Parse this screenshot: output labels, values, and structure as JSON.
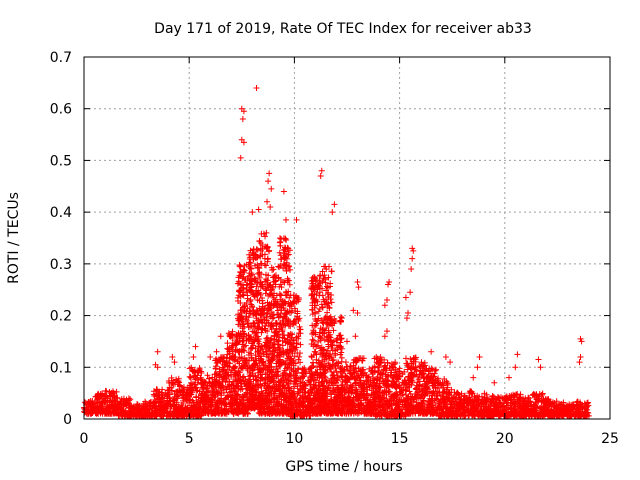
{
  "chart_data": {
    "type": "scatter",
    "title": "Day 171 of 2019, Rate Of TEC Index for receiver ab33",
    "xlabel": "GPS time / hours",
    "ylabel": "ROTI / TECUs",
    "xlim": [
      0,
      25
    ],
    "ylim": [
      0,
      0.7
    ],
    "xticks": [
      "0",
      "5",
      "10",
      "15",
      "20",
      "25"
    ],
    "yticks": [
      "0",
      "0.1",
      "0.2",
      "0.3",
      "0.4",
      "0.5",
      "0.6",
      "0.7"
    ],
    "grid": true,
    "marker": "+",
    "series": [
      {
        "color": "#ff0000",
        "points": [
          [
            8.2,
            0.64
          ],
          [
            7.5,
            0.6
          ],
          [
            7.6,
            0.595
          ],
          [
            7.55,
            0.58
          ],
          [
            7.5,
            0.54
          ],
          [
            7.6,
            0.535
          ],
          [
            7.45,
            0.505
          ],
          [
            8.8,
            0.475
          ],
          [
            8.75,
            0.46
          ],
          [
            8.9,
            0.445
          ],
          [
            9.5,
            0.44
          ],
          [
            8.7,
            0.42
          ],
          [
            8.85,
            0.41
          ],
          [
            11.3,
            0.48
          ],
          [
            11.25,
            0.47
          ],
          [
            11.9,
            0.415
          ],
          [
            11.8,
            0.4
          ],
          [
            8.0,
            0.4
          ],
          [
            8.3,
            0.405
          ],
          [
            9.6,
            0.385
          ],
          [
            10.1,
            0.385
          ],
          [
            15.6,
            0.33
          ],
          [
            15.65,
            0.325
          ],
          [
            15.6,
            0.31
          ],
          [
            15.55,
            0.29
          ],
          [
            13.0,
            0.265
          ],
          [
            13.05,
            0.255
          ],
          [
            14.5,
            0.265
          ],
          [
            14.45,
            0.26
          ],
          [
            14.4,
            0.23
          ],
          [
            14.3,
            0.22
          ],
          [
            15.5,
            0.245
          ],
          [
            15.3,
            0.235
          ],
          [
            15.4,
            0.205
          ],
          [
            15.35,
            0.195
          ],
          [
            12.8,
            0.21
          ],
          [
            13.0,
            0.205
          ],
          [
            14.3,
            0.16
          ],
          [
            14.4,
            0.17
          ],
          [
            12.9,
            0.16
          ],
          [
            3.5,
            0.13
          ],
          [
            3.4,
            0.105
          ],
          [
            3.5,
            0.1
          ],
          [
            4.2,
            0.12
          ],
          [
            4.3,
            0.11
          ],
          [
            5.3,
            0.14
          ],
          [
            5.2,
            0.12
          ],
          [
            6.0,
            0.12
          ],
          [
            6.3,
            0.13
          ],
          [
            6.5,
            0.16
          ],
          [
            18.8,
            0.12
          ],
          [
            18.7,
            0.1
          ],
          [
            18.5,
            0.08
          ],
          [
            20.6,
            0.125
          ],
          [
            20.5,
            0.1
          ],
          [
            21.6,
            0.115
          ],
          [
            21.7,
            0.1
          ],
          [
            19.5,
            0.07
          ],
          [
            20.2,
            0.08
          ],
          [
            23.6,
            0.155
          ],
          [
            23.65,
            0.15
          ],
          [
            23.6,
            0.12
          ],
          [
            23.55,
            0.11
          ],
          [
            16.5,
            0.13
          ],
          [
            17.2,
            0.12
          ],
          [
            17.4,
            0.11
          ],
          [
            12.2,
            0.14
          ],
          [
            12.5,
            0.15
          ]
        ],
        "bands": [
          [
            0.0,
            0.5,
            0.01,
            0.035
          ],
          [
            0.5,
            1.0,
            0.01,
            0.05
          ],
          [
            1.0,
            1.6,
            0.01,
            0.055
          ],
          [
            1.6,
            2.2,
            0.005,
            0.04
          ],
          [
            2.2,
            2.8,
            0.005,
            0.03
          ],
          [
            2.8,
            3.3,
            0.005,
            0.035
          ],
          [
            3.3,
            4.0,
            0.005,
            0.06
          ],
          [
            4.0,
            4.6,
            0.005,
            0.08
          ],
          [
            4.6,
            5.0,
            0.005,
            0.07
          ],
          [
            5.0,
            5.6,
            0.005,
            0.1
          ],
          [
            5.6,
            6.2,
            0.01,
            0.085
          ],
          [
            6.2,
            6.8,
            0.01,
            0.12
          ],
          [
            6.8,
            7.3,
            0.01,
            0.17
          ],
          [
            7.3,
            7.8,
            0.01,
            0.3
          ],
          [
            7.8,
            8.3,
            0.02,
            0.33
          ],
          [
            8.3,
            8.8,
            0.01,
            0.36
          ],
          [
            8.8,
            9.3,
            0.01,
            0.3
          ],
          [
            9.3,
            9.8,
            0.01,
            0.35
          ],
          [
            9.8,
            10.3,
            0.005,
            0.24
          ],
          [
            10.3,
            10.8,
            0.005,
            0.1
          ],
          [
            10.8,
            11.3,
            0.01,
            0.28
          ],
          [
            11.3,
            11.8,
            0.01,
            0.3
          ],
          [
            11.8,
            12.3,
            0.01,
            0.2
          ],
          [
            12.3,
            12.8,
            0.01,
            0.11
          ],
          [
            12.8,
            13.3,
            0.01,
            0.12
          ],
          [
            13.3,
            13.8,
            0.01,
            0.1
          ],
          [
            13.8,
            14.3,
            0.005,
            0.12
          ],
          [
            14.3,
            14.8,
            0.005,
            0.11
          ],
          [
            14.8,
            15.3,
            0.005,
            0.1
          ],
          [
            15.3,
            15.8,
            0.01,
            0.12
          ],
          [
            15.8,
            16.3,
            0.01,
            0.11
          ],
          [
            16.3,
            16.8,
            0.01,
            0.1
          ],
          [
            16.8,
            17.3,
            0.005,
            0.08
          ],
          [
            17.3,
            17.8,
            0.005,
            0.06
          ],
          [
            17.8,
            18.3,
            0.005,
            0.05
          ],
          [
            18.3,
            18.8,
            0.005,
            0.055
          ],
          [
            18.8,
            19.3,
            0.005,
            0.05
          ],
          [
            19.3,
            19.8,
            0.005,
            0.045
          ],
          [
            19.8,
            20.3,
            0.005,
            0.045
          ],
          [
            20.3,
            20.8,
            0.005,
            0.05
          ],
          [
            20.8,
            21.3,
            0.005,
            0.045
          ],
          [
            21.3,
            21.8,
            0.005,
            0.05
          ],
          [
            21.8,
            22.3,
            0.005,
            0.04
          ],
          [
            22.3,
            22.8,
            0.005,
            0.035
          ],
          [
            22.8,
            23.3,
            0.005,
            0.03
          ],
          [
            23.3,
            24.0,
            0.005,
            0.035
          ]
        ]
      }
    ]
  }
}
